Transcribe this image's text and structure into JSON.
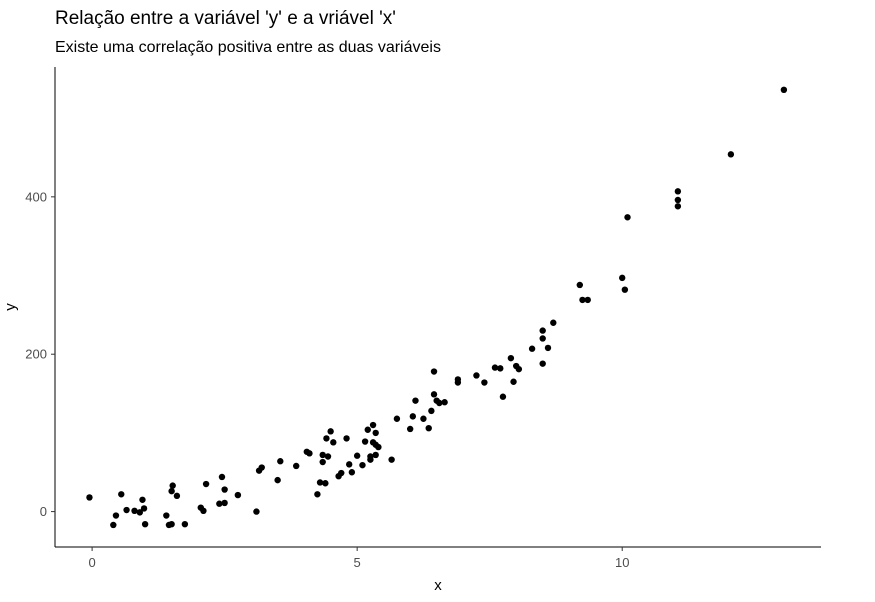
{
  "chart_data": {
    "type": "scatter",
    "title": "Relação entre a variável 'y' e a vriável 'x'",
    "subtitle": "Existe uma correlação positiva entre as duas variáveis",
    "xlabel": "x",
    "ylabel": "y",
    "xlim": [
      -0.7,
      13.75
    ],
    "ylim": [
      -45,
      565
    ],
    "x_ticks": [
      0,
      5,
      10
    ],
    "y_ticks": [
      0,
      200,
      400
    ],
    "x_tick_labels": [
      "0",
      "5",
      "10"
    ],
    "y_tick_labels": [
      "0",
      "200",
      "400"
    ],
    "grid": false,
    "legend": "none",
    "point_color": "#000000",
    "points": [
      [
        -0.05,
        18
      ],
      [
        0.4,
        -17
      ],
      [
        0.45,
        -5
      ],
      [
        0.55,
        22
      ],
      [
        0.65,
        2
      ],
      [
        0.8,
        1
      ],
      [
        0.9,
        -1
      ],
      [
        0.95,
        15
      ],
      [
        0.98,
        4
      ],
      [
        1.0,
        -16
      ],
      [
        1.4,
        -5
      ],
      [
        1.45,
        -17
      ],
      [
        1.5,
        -16
      ],
      [
        1.5,
        26
      ],
      [
        1.52,
        33
      ],
      [
        1.6,
        20
      ],
      [
        1.75,
        -16
      ],
      [
        2.05,
        5
      ],
      [
        2.1,
        1
      ],
      [
        2.15,
        35
      ],
      [
        2.4,
        10
      ],
      [
        2.45,
        44
      ],
      [
        2.5,
        11
      ],
      [
        2.5,
        28
      ],
      [
        2.75,
        21
      ],
      [
        3.1,
        0
      ],
      [
        3.15,
        52
      ],
      [
        3.2,
        56
      ],
      [
        3.5,
        40
      ],
      [
        3.55,
        64
      ],
      [
        3.85,
        58
      ],
      [
        4.05,
        76
      ],
      [
        4.1,
        74
      ],
      [
        4.25,
        22
      ],
      [
        4.3,
        37
      ],
      [
        4.35,
        63
      ],
      [
        4.35,
        72
      ],
      [
        4.4,
        36
      ],
      [
        4.42,
        93
      ],
      [
        4.45,
        70
      ],
      [
        4.5,
        102
      ],
      [
        4.55,
        88
      ],
      [
        4.65,
        45
      ],
      [
        4.7,
        49
      ],
      [
        4.8,
        93
      ],
      [
        4.85,
        60
      ],
      [
        4.9,
        50
      ],
      [
        5.0,
        71
      ],
      [
        5.1,
        59
      ],
      [
        5.15,
        89
      ],
      [
        5.2,
        104
      ],
      [
        5.25,
        70
      ],
      [
        5.25,
        66
      ],
      [
        5.3,
        110
      ],
      [
        5.3,
        88
      ],
      [
        5.35,
        100
      ],
      [
        5.35,
        85
      ],
      [
        5.35,
        72
      ],
      [
        5.4,
        82
      ],
      [
        5.65,
        66
      ],
      [
        5.75,
        118
      ],
      [
        6.0,
        105
      ],
      [
        6.05,
        121
      ],
      [
        6.1,
        141
      ],
      [
        6.25,
        118
      ],
      [
        6.35,
        106
      ],
      [
        6.4,
        128
      ],
      [
        6.45,
        149
      ],
      [
        6.45,
        178
      ],
      [
        6.5,
        141
      ],
      [
        6.55,
        138
      ],
      [
        6.65,
        139
      ],
      [
        6.9,
        168
      ],
      [
        6.9,
        164
      ],
      [
        7.25,
        173
      ],
      [
        7.4,
        164
      ],
      [
        7.6,
        183
      ],
      [
        7.7,
        182
      ],
      [
        7.75,
        146
      ],
      [
        7.9,
        195
      ],
      [
        7.95,
        165
      ],
      [
        8.0,
        185
      ],
      [
        8.05,
        181
      ],
      [
        8.3,
        207
      ],
      [
        8.5,
        188
      ],
      [
        8.5,
        220
      ],
      [
        8.5,
        230
      ],
      [
        8.6,
        208
      ],
      [
        8.7,
        240
      ],
      [
        9.2,
        288
      ],
      [
        9.25,
        269
      ],
      [
        9.35,
        269
      ],
      [
        10.0,
        297
      ],
      [
        10.05,
        282
      ],
      [
        10.1,
        374
      ],
      [
        11.05,
        407
      ],
      [
        11.05,
        396
      ],
      [
        11.05,
        388
      ],
      [
        12.05,
        454
      ],
      [
        13.05,
        536
      ]
    ]
  }
}
